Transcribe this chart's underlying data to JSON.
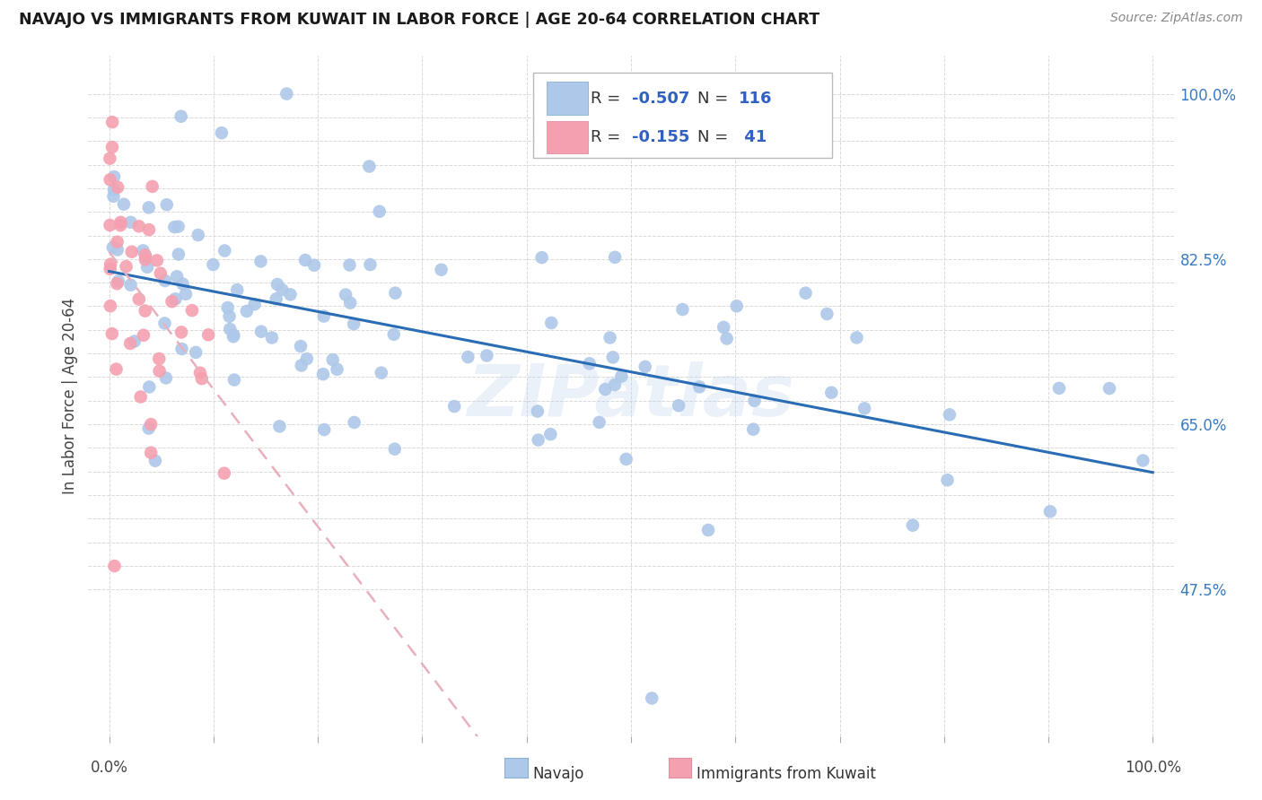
{
  "title": "NAVAJO VS IMMIGRANTS FROM KUWAIT IN LABOR FORCE | AGE 20-64 CORRELATION CHART",
  "source": "Source: ZipAtlas.com",
  "ylabel": "In Labor Force | Age 20-64",
  "navajo_R": -0.507,
  "navajo_N": 116,
  "kuwait_R": -0.155,
  "kuwait_N": 41,
  "navajo_color": "#adc8e8",
  "navajo_line_color": "#2a6db5",
  "kuwait_color": "#f5a0b0",
  "kuwait_line_color": "#e06070",
  "bg_color": "#ffffff",
  "grid_color": "#d0d0d0",
  "watermark": "ZIPatlas",
  "legend_R_color": "#3060c0",
  "legend_N_color": "#3060c0",
  "ytick_color": "#3a7abf",
  "ymin": 0.32,
  "ymax": 1.04,
  "xmin": -0.02,
  "xmax": 1.02
}
